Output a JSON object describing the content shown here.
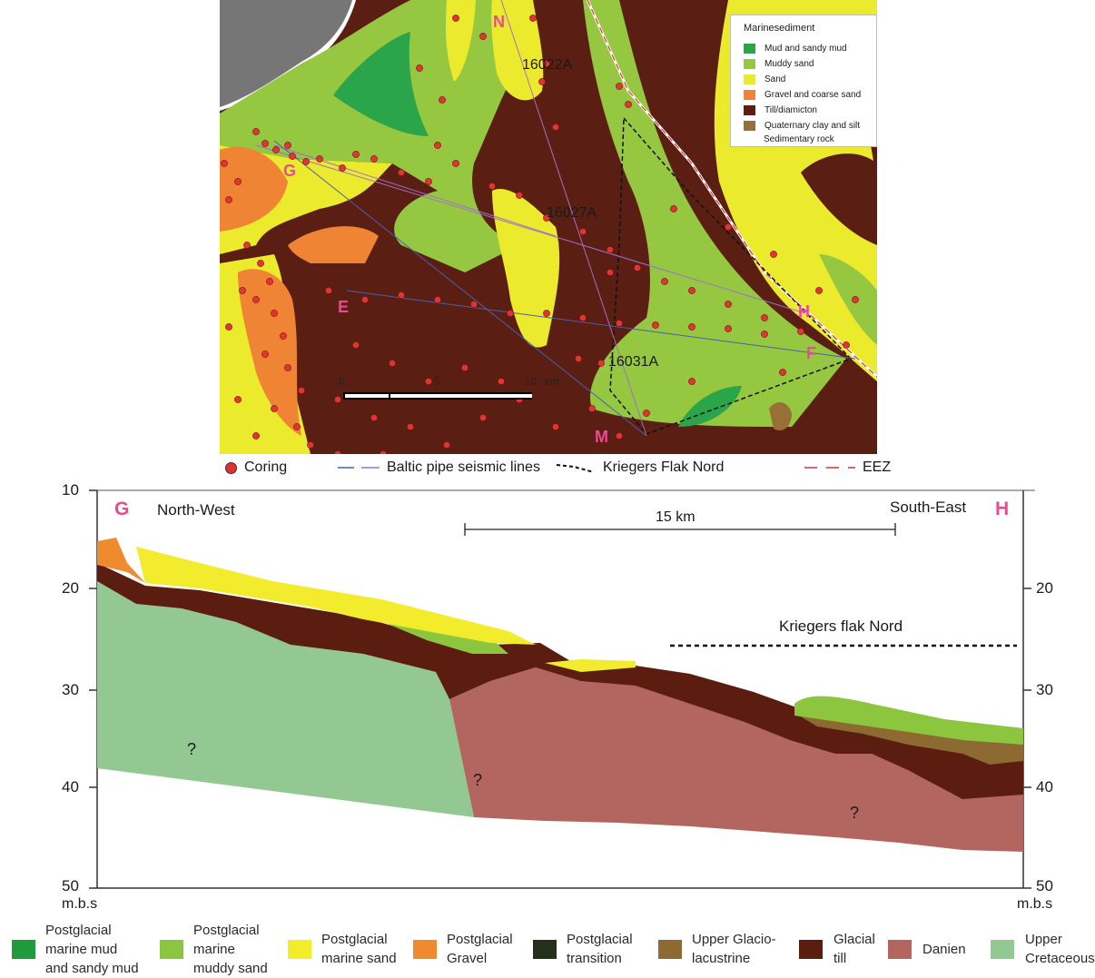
{
  "map": {
    "legend_title": "Marinesediment",
    "legend_items": [
      {
        "label": "Mud and sandy mud",
        "color": "#2aa54a"
      },
      {
        "label": "Muddy sand",
        "color": "#95c741"
      },
      {
        "label": "Sand",
        "color": "#ecea2c"
      },
      {
        "label": "Gravel and coarse sand",
        "color": "#ee8434"
      },
      {
        "label": "Till/diamicton",
        "color": "#5a1f12"
      },
      {
        "label": "Quaternary clay and silt",
        "color": "#996f37"
      },
      {
        "label": "Sedimentary rock",
        "color": ""
      }
    ],
    "letters": [
      "N",
      "G",
      "E",
      "H",
      "F",
      "M"
    ],
    "cores": [
      "16022A",
      "16027A",
      "16031A"
    ],
    "scale": {
      "ticks": [
        "0",
        "5",
        "10"
      ],
      "unit": "km"
    }
  },
  "map_key": {
    "coring": "Coring",
    "seismic": "Baltic pipe seismic lines",
    "kriegers": "Kriegers Flak Nord",
    "eez": "EEZ"
  },
  "profile": {
    "left_end": "G",
    "right_end": "H",
    "left_direction": "North-West",
    "right_direction": "South-East",
    "scale_label": "15 km",
    "kriegers_label": "Kriegers flak Nord",
    "y_ticks": [
      "10",
      "20",
      "30",
      "40",
      "50"
    ],
    "y_unit": "m.b.s",
    "unknown_mark": "?"
  },
  "bottom_legend": [
    {
      "lines": [
        "Postglacial",
        "marine mud",
        "and sandy mud"
      ],
      "color": "#1f9a3c"
    },
    {
      "lines": [
        "Postglacial",
        "marine",
        "muddy sand"
      ],
      "color": "#8cc63e"
    },
    {
      "lines": [
        "Postglacial",
        "marine sand"
      ],
      "color": "#f2ec2c"
    },
    {
      "lines": [
        "Postglacial",
        "Gravel"
      ],
      "color": "#f08a2e"
    },
    {
      "lines": [
        "Postglacial",
        "transition"
      ],
      "color": "#25301c"
    },
    {
      "lines": [
        "Upper Glacio-",
        "lacustrine"
      ],
      "color": "#8c6a31"
    },
    {
      "lines": [
        "Glacial",
        "till"
      ],
      "color": "#5b1d10"
    },
    {
      "lines": [
        "Danien"
      ],
      "color": "#b3665f"
    },
    {
      "lines": [
        "Upper",
        "Cretaceous"
      ],
      "color": "#93c893"
    }
  ]
}
